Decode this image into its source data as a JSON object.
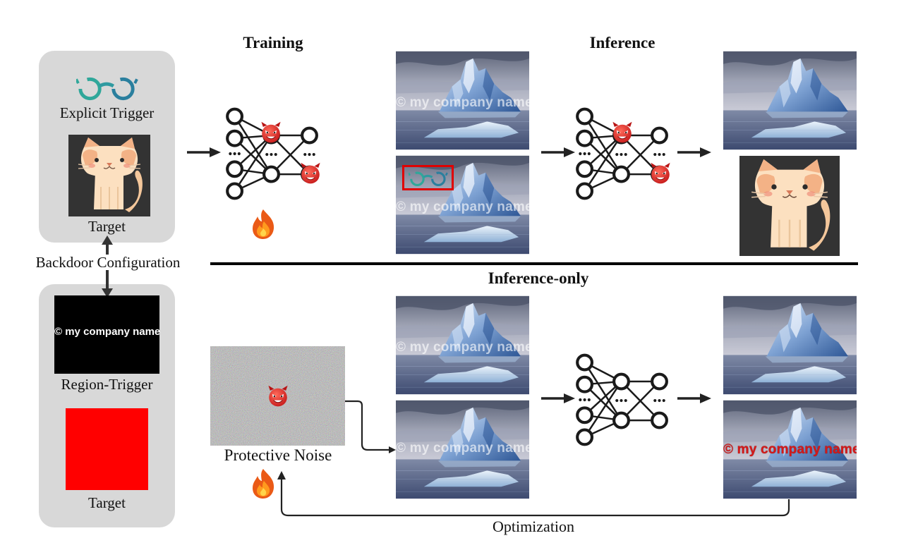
{
  "headings": {
    "training": "Training",
    "inference": "Inference",
    "inference_only": "Inference-only"
  },
  "config_panel": {
    "explicit_trigger_label": "Explicit Trigger",
    "target_label_top": "Target",
    "backdoor_configuration_label": "Backdoor Configuration",
    "region_trigger_label": "Region-Trigger",
    "region_trigger_text": "© my company name",
    "target_label_bottom": "Target"
  },
  "watermark_text": "© my company name",
  "protective_noise_label": "Protective Noise",
  "optimization_label": "Optimization",
  "colors": {
    "panel_gray": "#d8d8d8",
    "trigger_box_red": "#e00000",
    "target_red": "#ff0000",
    "glasses_teal": "#2fa79a"
  },
  "icons": [
    "glasses-icon",
    "cat-icon",
    "devil-icon",
    "fire-icon",
    "neural-network-icon",
    "arrow-icon"
  ]
}
